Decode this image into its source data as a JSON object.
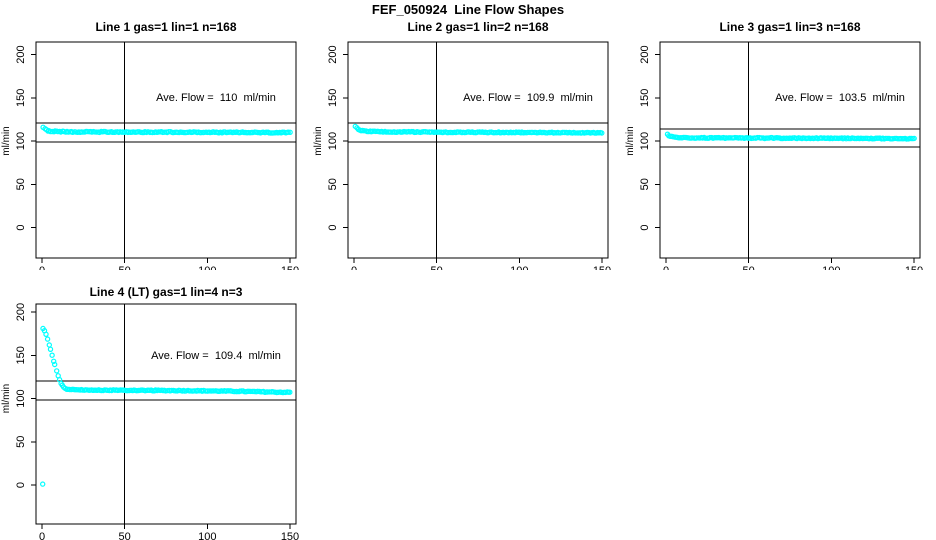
{
  "figure": {
    "title": "FEF_050924  Line Flow Shapes"
  },
  "chart_data": {
    "type": "scatter",
    "title": "FEF_050924  Line Flow Shapes",
    "xlabel": "",
    "ylabel": "ml/min",
    "xlim": [
      0,
      150
    ],
    "ylim": [
      0,
      200
    ],
    "x_ticks": [
      0,
      50,
      100,
      150
    ],
    "y_ticks": [
      0,
      50,
      100,
      150,
      200
    ],
    "grid": false,
    "legend": "none",
    "marker": "open-circle",
    "marker_color": "#00FFFF",
    "axis_color": "#000000",
    "reference_vline_x": 50,
    "panels": [
      {
        "title": "Line 1 gas=1 lin=1 n=168",
        "n": 168,
        "n_points": 168,
        "avg_flow_ml_min": 110,
        "avg_label": "Ave. Flow =  110  ml/min",
        "band_lines": [
          99,
          121
        ],
        "scatter_spread": 1.1,
        "curve_keypoints": [
          [
            1,
            115.5
          ],
          [
            2,
            113.5
          ],
          [
            3,
            112.3
          ],
          [
            4,
            111.6
          ],
          [
            6,
            111.2
          ],
          [
            10,
            110.8
          ],
          [
            20,
            110.6
          ],
          [
            50,
            110.4
          ],
          [
            100,
            110.1
          ],
          [
            150,
            109.6
          ]
        ],
        "outliers": []
      },
      {
        "title": "Line 2 gas=1 lin=2 n=168",
        "n": 168,
        "n_points": 168,
        "avg_flow_ml_min": 109.9,
        "avg_label": "Ave. Flow =  109.9  ml/min",
        "band_lines": [
          98.9,
          120.9
        ],
        "scatter_spread": 1.0,
        "curve_keypoints": [
          [
            1,
            117
          ],
          [
            2,
            114.5
          ],
          [
            3,
            113
          ],
          [
            4,
            112.2
          ],
          [
            6,
            111.5
          ],
          [
            10,
            111
          ],
          [
            20,
            110.6
          ],
          [
            50,
            110.2
          ],
          [
            100,
            109.9
          ],
          [
            150,
            109.5
          ]
        ],
        "outliers": []
      },
      {
        "title": "Line 3 gas=1 lin=3 n=168",
        "n": 168,
        "n_points": 168,
        "avg_flow_ml_min": 103.5,
        "avg_label": "Ave. Flow =  103.5  ml/min",
        "band_lines": [
          93.2,
          113.9
        ],
        "scatter_spread": 1.0,
        "curve_keypoints": [
          [
            1,
            107.5
          ],
          [
            2,
            106
          ],
          [
            3,
            105.2
          ],
          [
            4,
            104.6
          ],
          [
            6,
            104.1
          ],
          [
            10,
            103.8
          ],
          [
            20,
            103.6
          ],
          [
            50,
            103.5
          ],
          [
            100,
            103.2
          ],
          [
            150,
            102.7
          ]
        ],
        "outliers": []
      },
      {
        "title": "Line 4 (LT) gas=1 lin=4 n=3",
        "n": 3,
        "n_points": 170,
        "avg_flow_ml_min": 109.4,
        "avg_label": "Ave. Flow =  109.4  ml/min",
        "band_lines": [
          98.5,
          120.3
        ],
        "scatter_spread": 1.0,
        "curve_keypoints": [
          [
            1,
            181
          ],
          [
            2,
            177
          ],
          [
            3,
            171
          ],
          [
            4,
            165
          ],
          [
            5,
            158
          ],
          [
            6,
            151
          ],
          [
            7,
            144
          ],
          [
            8,
            137
          ],
          [
            9,
            131
          ],
          [
            10,
            125
          ],
          [
            11,
            120
          ],
          [
            12,
            116
          ],
          [
            13,
            113
          ],
          [
            14,
            111.5
          ],
          [
            16,
            110.5
          ],
          [
            20,
            110
          ],
          [
            30,
            109.8
          ],
          [
            50,
            109.5
          ],
          [
            80,
            109.2
          ],
          [
            110,
            108.6
          ],
          [
            130,
            107.9
          ],
          [
            150,
            107.1
          ]
        ],
        "outliers": [
          [
            0.4,
            1
          ]
        ]
      }
    ]
  }
}
